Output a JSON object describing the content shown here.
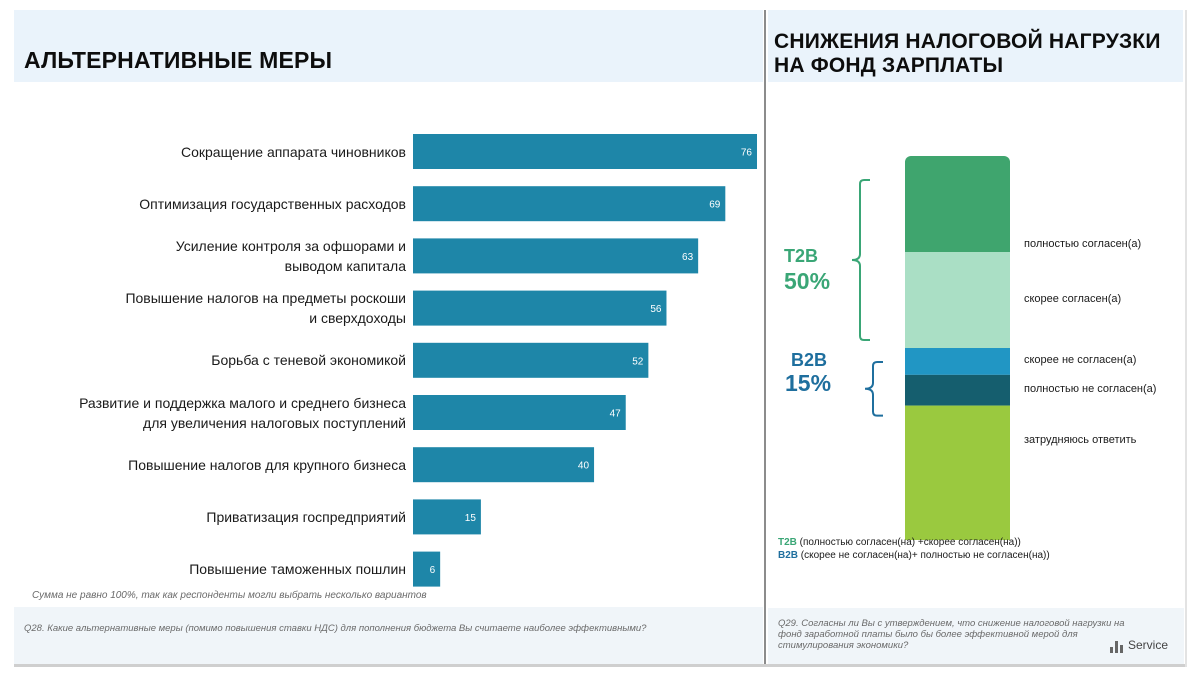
{
  "left": {
    "title": "АЛЬТЕРНАТИВНЫЕ МЕРЫ",
    "note": "Сумма не равно 100%, так как респонденты могли выбрать несколько вариантов",
    "question": "Q28. Какие альтернативные меры (помимо повышения ставки НДС) для пополнения бюджета Вы считаете наиболее эффективными?"
  },
  "right": {
    "title_line1": "СНИЖЕНИЯ НАЛОГОВОЙ НАГРУЗКИ",
    "title_line2": "НА ФОНД ЗАРПЛАТЫ",
    "t2b_label": "T2B",
    "t2b_value": "50%",
    "b2b_label": "B2B",
    "b2b_value": "15%",
    "legend_t2b_key": "T2B",
    "legend_t2b_text": " (полностью согласен(на) +скорее согласен(на))",
    "legend_b2b_key": "B2B",
    "legend_b2b_text": " (скорее не согласен(на)+ полностью не согласен(на))",
    "question_line1": "Q29. Согласны ли Вы с утверждением, что снижение налоговой нагрузки на",
    "question_line2": "фонд заработной платы было бы более эффективной мерой для",
    "question_line3": "стимулирования экономики?",
    "logo_text": "Service"
  },
  "colors": {
    "bar": "#1e86a8",
    "t2b": "#3aa676",
    "b2b": "#1f6f9e",
    "fully_agree": "#3fa56e",
    "rather_agree": "#aadfc5",
    "rather_disagree": "#2196c4",
    "fully_disagree": "#155e6e",
    "dont_know": "#9ac93f"
  },
  "chart_data": [
    {
      "type": "bar",
      "orientation": "horizontal",
      "categories": [
        [
          "Сокращение аппарата чиновников"
        ],
        [
          "Оптимизация государственных расходов"
        ],
        [
          "Усиление контроля за офшорами и",
          "выводом капитала"
        ],
        [
          "Повышение налогов на предметы роскоши",
          "и сверхдоходы"
        ],
        [
          "Борьба с теневой экономикой"
        ],
        [
          "Развитие и поддержка малого и среднего бизнеса",
          "для увеличения налоговых поступлений"
        ],
        [
          "Повышение налогов для крупного бизнеса"
        ],
        [
          "Приватизация госпредприятий"
        ],
        [
          "Повышение таможенных пошлин"
        ]
      ],
      "values": [
        76,
        69,
        63,
        56,
        52,
        47,
        40,
        15,
        6
      ],
      "xlim": [
        0,
        76
      ],
      "grid": false,
      "data_labels": true
    },
    {
      "type": "bar",
      "orientation": "stacked-vertical",
      "segments": [
        {
          "name": "полностью согласен(а)",
          "value": 25,
          "color": "#3fa56e"
        },
        {
          "name": "скорее согласен(а)",
          "value": 25,
          "color": "#aadfc5"
        },
        {
          "name": "скорее не согласен(а)",
          "value": 7,
          "color": "#2196c4"
        },
        {
          "name": "полностью не согласен(а)",
          "value": 8,
          "color": "#155e6e"
        },
        {
          "name": "затрудняюсь ответить",
          "value": 35,
          "color": "#9ac93f"
        }
      ],
      "total": 100,
      "groups": [
        {
          "label": "T2B",
          "value": 50
        },
        {
          "label": "B2B",
          "value": 15
        }
      ]
    }
  ]
}
